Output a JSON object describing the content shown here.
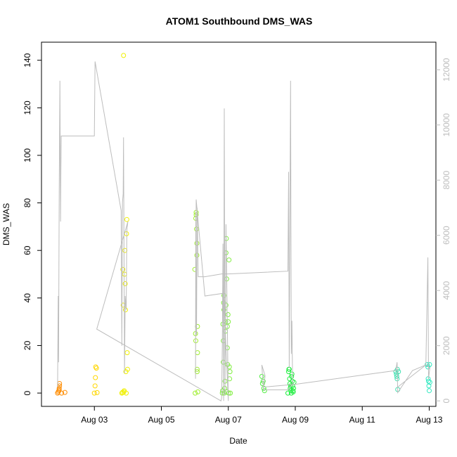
{
  "chart_data": {
    "type": "scatter",
    "title": "ATOM1 Southbound DMS_WAS",
    "xlabel": "Date",
    "ylabel": "DMS_WAS",
    "x_tick_labels": [
      "Aug 03",
      "Aug 05",
      "Aug 07",
      "Aug 09",
      "Aug 11",
      "Aug 13"
    ],
    "y_tick_labels": [
      "0",
      "20",
      "40",
      "60",
      "80",
      "100",
      "120",
      "140"
    ],
    "y2_tick_labels": [
      "0",
      "2000",
      "4000",
      "6000",
      "8000",
      "10000",
      "12000"
    ],
    "xlim": [
      1.42,
      13.2
    ],
    "ylim": [
      -5.6,
      147.6
    ],
    "y2lim": [
      -200,
      13000
    ],
    "grid": false,
    "colors": {
      "background": "#ffffff",
      "axis": "#000000",
      "secondary_axis": "#bdbdbd",
      "altitude_line": "#bdbdbd"
    },
    "series": [
      {
        "color": "#ff8c00",
        "points": [
          {
            "x": 1.9,
            "y": 0
          },
          {
            "x": 1.92,
            "y": 0.5
          },
          {
            "x": 1.94,
            "y": 1
          },
          {
            "x": 1.95,
            "y": 1.5
          },
          {
            "x": 1.95,
            "y": 2
          },
          {
            "x": 1.96,
            "y": 3
          },
          {
            "x": 1.96,
            "y": 4
          },
          {
            "x": 2.02,
            "y": 0
          },
          {
            "x": 2.12,
            "y": 0.3
          }
        ]
      },
      {
        "color": "#ffd700",
        "points": [
          {
            "x": 3.0,
            "y": 0
          },
          {
            "x": 3.02,
            "y": 3
          },
          {
            "x": 3.03,
            "y": 6.5
          },
          {
            "x": 3.04,
            "y": 11
          },
          {
            "x": 3.06,
            "y": 10.5
          },
          {
            "x": 3.08,
            "y": 0.2
          }
        ]
      },
      {
        "color": "#f0f000",
        "points": [
          {
            "x": 3.82,
            "y": 0
          },
          {
            "x": 3.84,
            "y": 0.3
          },
          {
            "x": 3.85,
            "y": 52
          },
          {
            "x": 3.86,
            "y": 37
          },
          {
            "x": 3.87,
            "y": 142
          },
          {
            "x": 3.88,
            "y": 0.5
          },
          {
            "x": 3.89,
            "y": 1
          },
          {
            "x": 3.9,
            "y": 50
          },
          {
            "x": 3.91,
            "y": 60
          },
          {
            "x": 3.92,
            "y": 46
          },
          {
            "x": 3.93,
            "y": 35
          },
          {
            "x": 3.94,
            "y": 9
          },
          {
            "x": 3.95,
            "y": 0
          },
          {
            "x": 3.96,
            "y": 67
          },
          {
            "x": 3.97,
            "y": 73
          },
          {
            "x": 3.98,
            "y": 17
          },
          {
            "x": 3.99,
            "y": 10
          }
        ]
      },
      {
        "color": "#a0ee30",
        "points": [
          {
            "x": 6.0,
            "y": 52
          },
          {
            "x": 6.01,
            "y": 0
          },
          {
            "x": 6.02,
            "y": 25
          },
          {
            "x": 6.03,
            "y": 22
          },
          {
            "x": 6.03,
            "y": 73.5
          },
          {
            "x": 6.04,
            "y": 75
          },
          {
            "x": 6.04,
            "y": 76
          },
          {
            "x": 6.05,
            "y": 69
          },
          {
            "x": 6.06,
            "y": 63
          },
          {
            "x": 6.06,
            "y": 58
          },
          {
            "x": 6.07,
            "y": 10
          },
          {
            "x": 6.07,
            "y": 9
          },
          {
            "x": 6.08,
            "y": 17
          },
          {
            "x": 6.08,
            "y": 28
          },
          {
            "x": 6.09,
            "y": 0.5
          }
        ]
      },
      {
        "color": "#80ee40",
        "points": [
          {
            "x": 6.82,
            "y": 0
          },
          {
            "x": 6.83,
            "y": 1
          },
          {
            "x": 6.84,
            "y": 29
          },
          {
            "x": 6.85,
            "y": 13
          },
          {
            "x": 6.85,
            "y": 22
          },
          {
            "x": 6.86,
            "y": 38
          },
          {
            "x": 6.87,
            "y": 41
          },
          {
            "x": 6.87,
            "y": 35
          },
          {
            "x": 6.88,
            "y": 0
          },
          {
            "x": 6.89,
            "y": 2
          },
          {
            "x": 6.9,
            "y": 5
          },
          {
            "x": 6.91,
            "y": 26
          },
          {
            "x": 6.92,
            "y": 30
          },
          {
            "x": 6.93,
            "y": 37
          },
          {
            "x": 6.93,
            "y": 59
          },
          {
            "x": 6.94,
            "y": 65
          },
          {
            "x": 6.95,
            "y": 48
          },
          {
            "x": 6.96,
            "y": 0.5
          },
          {
            "x": 6.97,
            "y": 28
          },
          {
            "x": 6.97,
            "y": 19
          },
          {
            "x": 6.98,
            "y": 12
          },
          {
            "x": 6.99,
            "y": 33
          },
          {
            "x": 7.0,
            "y": 30
          },
          {
            "x": 7.01,
            "y": 0
          },
          {
            "x": 7.02,
            "y": 56
          },
          {
            "x": 7.03,
            "y": 11
          },
          {
            "x": 7.04,
            "y": 6
          },
          {
            "x": 7.05,
            "y": 9
          },
          {
            "x": 7.06,
            "y": 0
          }
        ]
      },
      {
        "color": "#50ee40",
        "points": [
          {
            "x": 8.0,
            "y": 7
          },
          {
            "x": 8.02,
            "y": 4
          },
          {
            "x": 8.04,
            "y": 5
          },
          {
            "x": 8.06,
            "y": 2
          },
          {
            "x": 8.08,
            "y": 1
          }
        ]
      },
      {
        "color": "#20ee40",
        "points": [
          {
            "x": 8.78,
            "y": 0
          },
          {
            "x": 8.8,
            "y": 9
          },
          {
            "x": 8.81,
            "y": 10
          },
          {
            "x": 8.82,
            "y": 10
          },
          {
            "x": 8.83,
            "y": 6
          },
          {
            "x": 8.84,
            "y": 4
          },
          {
            "x": 8.85,
            "y": 2
          },
          {
            "x": 8.86,
            "y": 3
          },
          {
            "x": 8.87,
            "y": 1
          },
          {
            "x": 8.88,
            "y": 0
          },
          {
            "x": 8.89,
            "y": 7
          },
          {
            "x": 8.9,
            "y": 8
          },
          {
            "x": 8.91,
            "y": 5
          },
          {
            "x": 8.92,
            "y": 3
          },
          {
            "x": 8.93,
            "y": 1
          },
          {
            "x": 8.94,
            "y": 0.5
          },
          {
            "x": 8.95,
            "y": 2
          },
          {
            "x": 8.96,
            "y": 4.5
          }
        ]
      },
      {
        "color": "#40e0b0",
        "points": [
          {
            "x": 12.0,
            "y": 9
          },
          {
            "x": 12.02,
            "y": 8
          },
          {
            "x": 12.03,
            "y": 7
          },
          {
            "x": 12.04,
            "y": 6
          },
          {
            "x": 12.05,
            "y": 10
          },
          {
            "x": 12.06,
            "y": 1.5
          },
          {
            "x": 12.08,
            "y": 9
          }
        ]
      },
      {
        "color": "#30e8c0",
        "points": [
          {
            "x": 12.94,
            "y": 12
          },
          {
            "x": 12.96,
            "y": 11
          },
          {
            "x": 12.97,
            "y": 6
          },
          {
            "x": 12.98,
            "y": 5
          },
          {
            "x": 12.99,
            "y": 3
          },
          {
            "x": 13.0,
            "y": 1
          },
          {
            "x": 13.01,
            "y": 12
          },
          {
            "x": 13.02,
            "y": 4.5
          }
        ]
      }
    ],
    "altitude_line": [
      {
        "x": 1.9,
        "y": 500
      },
      {
        "x": 1.92,
        "y": 3800
      },
      {
        "x": 1.93,
        "y": 1400
      },
      {
        "x": 1.95,
        "y": 7500
      },
      {
        "x": 1.97,
        "y": 11600
      },
      {
        "x": 1.99,
        "y": 6500
      },
      {
        "x": 2.0,
        "y": 8400
      },
      {
        "x": 2.01,
        "y": 9600
      },
      {
        "x": 2.05,
        "y": 9600
      },
      {
        "x": 3.0,
        "y": 9600
      },
      {
        "x": 3.02,
        "y": 12300
      },
      {
        "x": 3.8,
        "y": 6900
      },
      {
        "x": 3.82,
        "y": 2000
      },
      {
        "x": 3.84,
        "y": 7200
      },
      {
        "x": 3.86,
        "y": 7500
      },
      {
        "x": 3.87,
        "y": 9550
      },
      {
        "x": 3.9,
        "y": 1000
      },
      {
        "x": 3.92,
        "y": 3800
      },
      {
        "x": 3.95,
        "y": 3300
      },
      {
        "x": 3.97,
        "y": 6200
      },
      {
        "x": 4.0,
        "y": 6500
      },
      {
        "x": 3.07,
        "y": 2600
      },
      {
        "x": 6.78,
        "y": 0
      },
      {
        "x": 6.8,
        "y": 100
      },
      {
        "x": 6.82,
        "y": 2000
      },
      {
        "x": 6.84,
        "y": 5700
      },
      {
        "x": 6.86,
        "y": 0
      },
      {
        "x": 6.88,
        "y": 10600
      },
      {
        "x": 6.9,
        "y": 200
      },
      {
        "x": 6.93,
        "y": 6400
      },
      {
        "x": 6.96,
        "y": 3800
      },
      {
        "x": 7.0,
        "y": 0
      },
      {
        "x": 6.86,
        "y": 3900
      },
      {
        "x": 6.3,
        "y": 3800
      },
      {
        "x": 6.04,
        "y": 7300
      },
      {
        "x": 6.02,
        "y": 800
      },
      {
        "x": 6.03,
        "y": 6800
      },
      {
        "x": 6.05,
        "y": 2400
      },
      {
        "x": 6.07,
        "y": 7000
      },
      {
        "x": 6.1,
        "y": 4500
      },
      {
        "x": 6.3,
        "y": 4500
      },
      {
        "x": 6.8,
        "y": 4600
      },
      {
        "x": 7.0,
        "y": 4600
      },
      {
        "x": 8.78,
        "y": 4700
      },
      {
        "x": 8.8,
        "y": 8300
      },
      {
        "x": 8.82,
        "y": 1200
      },
      {
        "x": 8.86,
        "y": 11600
      },
      {
        "x": 8.88,
        "y": 1700
      },
      {
        "x": 8.9,
        "y": 2900
      },
      {
        "x": 8.92,
        "y": 600
      },
      {
        "x": 8.78,
        "y": 400
      },
      {
        "x": 8.05,
        "y": 400
      },
      {
        "x": 8.0,
        "y": 1300
      },
      {
        "x": 8.1,
        "y": 900
      },
      {
        "x": 8.05,
        "y": 500
      },
      {
        "x": 9.0,
        "y": 600
      },
      {
        "x": 12.0,
        "y": 1100
      },
      {
        "x": 12.04,
        "y": 1400
      },
      {
        "x": 12.06,
        "y": 300
      },
      {
        "x": 12.5,
        "y": 1100
      },
      {
        "x": 12.9,
        "y": 1300
      },
      {
        "x": 12.96,
        "y": 5200
      },
      {
        "x": 12.98,
        "y": 800
      },
      {
        "x": 13.02,
        "y": 1200
      },
      {
        "x": 12.9,
        "y": 1300
      },
      {
        "x": 12.06,
        "y": 500
      }
    ]
  }
}
